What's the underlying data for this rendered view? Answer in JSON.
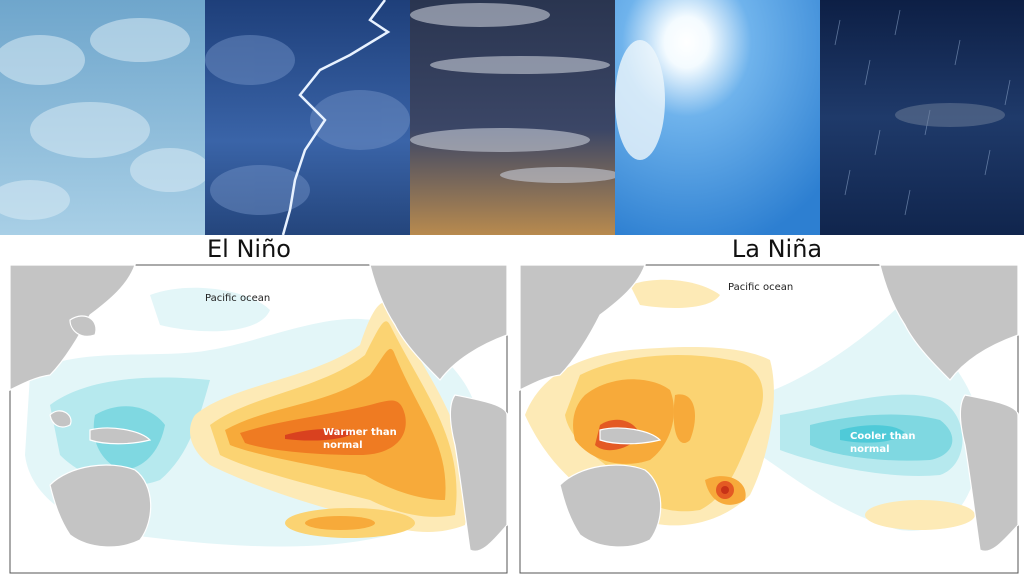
{
  "panels": [
    {
      "title": "El Niño",
      "ocean_label": "Pacific ocean",
      "anomaly_label": [
        "Warmer than",
        "normal"
      ]
    },
    {
      "title": "La Niña",
      "ocean_label": "Pacific ocean",
      "anomaly_label": [
        "Cooler than",
        "normal"
      ]
    }
  ]
}
